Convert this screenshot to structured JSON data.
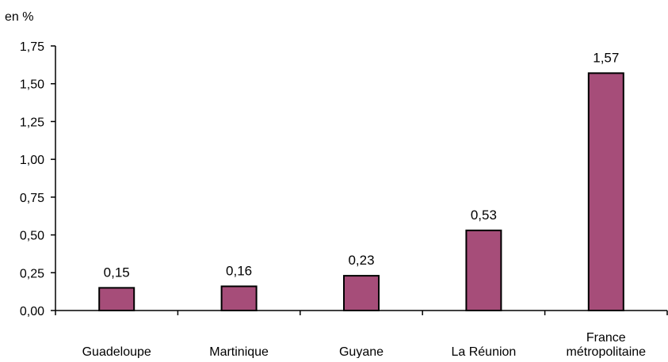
{
  "chart_data": {
    "type": "bar",
    "unit_label": "en %",
    "categories": [
      [
        "Guadeloupe"
      ],
      [
        "Martinique"
      ],
      [
        "Guyane"
      ],
      [
        "La Réunion"
      ],
      [
        "France",
        "métropolitaine"
      ]
    ],
    "values": [
      0.15,
      0.16,
      0.23,
      0.53,
      1.57
    ],
    "value_labels": [
      "0,15",
      "0,16",
      "0,23",
      "0,53",
      "1,57"
    ],
    "yticks": [
      0,
      0.25,
      0.5,
      0.75,
      1,
      1.25,
      1.5,
      1.75
    ],
    "ytick_labels": [
      "0,00",
      "0,25",
      "0,50",
      "0,75",
      "1,00",
      "1,25",
      "1,50",
      "1,75"
    ],
    "ylim": [
      0,
      1.75
    ],
    "bar_color": "#a64d79",
    "grid": false,
    "legend": "none"
  }
}
